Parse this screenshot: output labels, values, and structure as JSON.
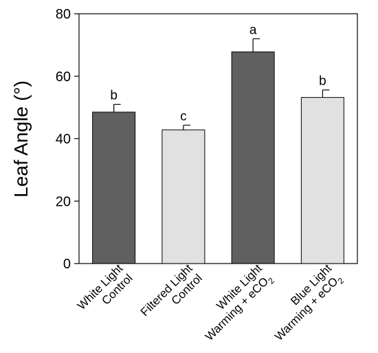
{
  "chart_data": {
    "type": "bar",
    "title": "",
    "xlabel": "",
    "ylabel": "Leaf Angle (°)",
    "ylim": [
      0,
      80
    ],
    "yticks": [
      0,
      20,
      40,
      60,
      80
    ],
    "grid": false,
    "categories": [
      {
        "lines": [
          "White Light",
          "Control"
        ]
      },
      {
        "lines": [
          "Filtered Light",
          "Control"
        ]
      },
      {
        "lines": [
          "White Light",
          "Warming + eCO",
          "2"
        ]
      },
      {
        "lines": [
          "Blue Light",
          "Warming + eCO",
          "2"
        ]
      }
    ],
    "values": [
      48.5,
      42.8,
      67.8,
      53.2
    ],
    "errors": [
      2.5,
      1.5,
      4.2,
      2.4
    ],
    "significance": [
      "b",
      "c",
      "a",
      "b"
    ],
    "colors": [
      "#606060",
      "#e1e1e1",
      "#606060",
      "#e1e1e1"
    ]
  }
}
